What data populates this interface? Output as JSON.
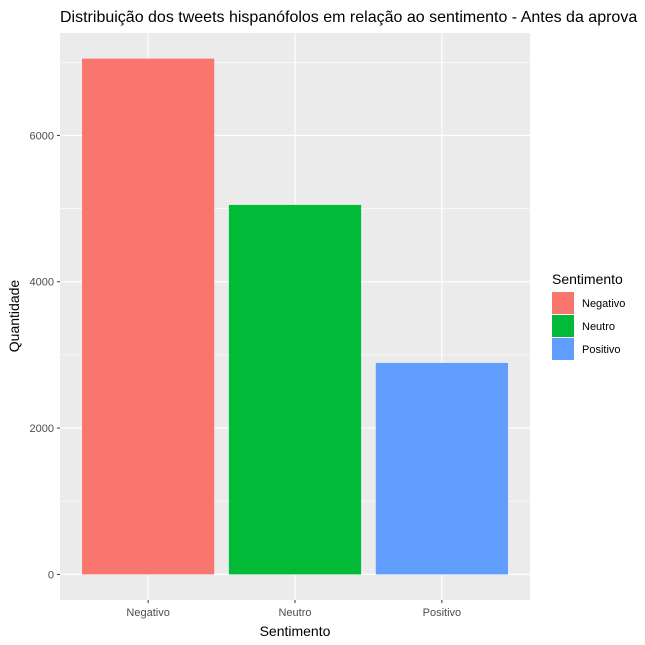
{
  "chart_data": {
    "type": "bar",
    "title": "Distribuição dos tweets hispanófolos em relação ao sentimento - Antes da aprova",
    "xlabel": "Sentimento",
    "ylabel": "Quantidade",
    "categories": [
      "Negativo",
      "Neutro",
      "Positivo"
    ],
    "values": [
      7050,
      5050,
      2890
    ],
    "colors": [
      "#F8766D",
      "#00BA38",
      "#619CFF"
    ],
    "ylim": [
      -350,
      7400
    ],
    "yticks": [
      0,
      2000,
      4000,
      6000
    ],
    "ytick_labels": [
      "0",
      "2000",
      "4000",
      "6000"
    ],
    "grid": true,
    "legend": {
      "title": "Sentimento",
      "position": "right",
      "entries": [
        "Negativo",
        "Neutro",
        "Positivo"
      ]
    },
    "panel_background": "#EBEBEB",
    "grid_color": "#FFFFFF"
  }
}
